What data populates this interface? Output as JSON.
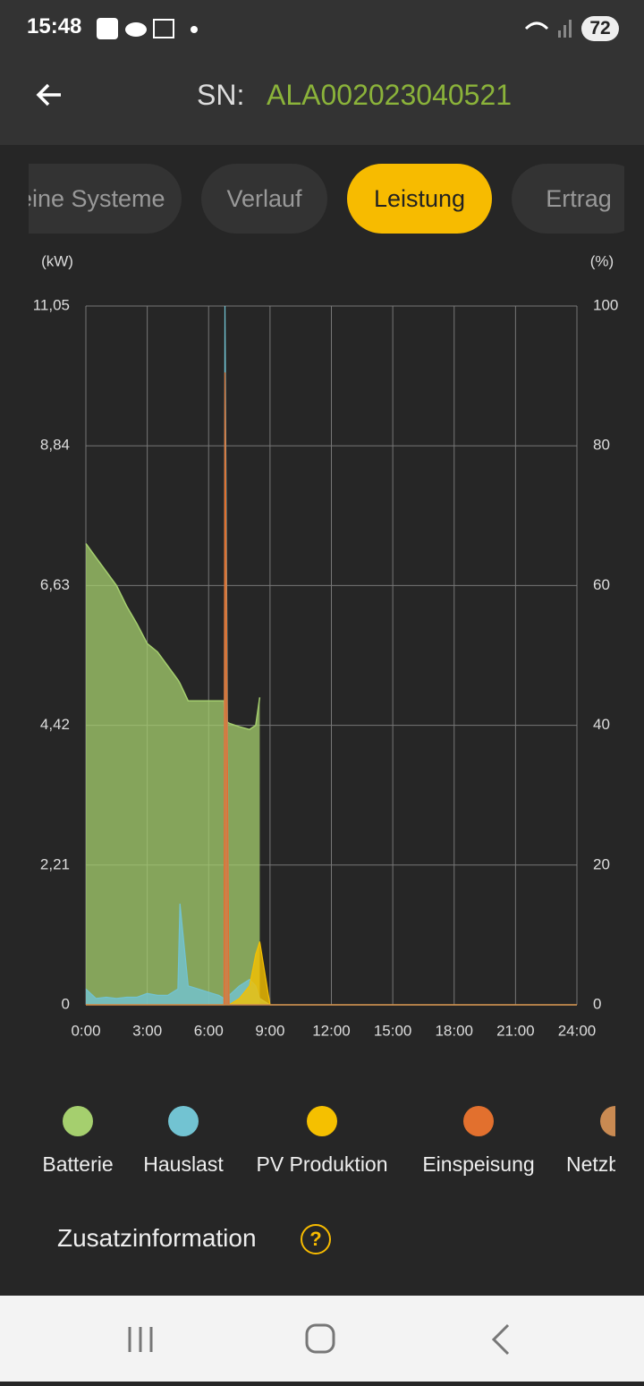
{
  "status_bar": {
    "time": "15:48",
    "battery": "72"
  },
  "header": {
    "label": "SN:",
    "serial": "ALA002023040521"
  },
  "tabs": [
    "Meine Systeme",
    "Verlauf",
    "Leistung",
    "Ertrag"
  ],
  "active_tab": 2,
  "chart_data": {
    "type": "area",
    "ylabel": "(kW)",
    "y2label": "(%)",
    "x": [
      0,
      0.5,
      1,
      1.5,
      2,
      2.5,
      3,
      3.5,
      4,
      4.5,
      4.6,
      5,
      5.5,
      6,
      6.5,
      6.75,
      6.8,
      7,
      7.5,
      8,
      8.3,
      8.5,
      9,
      12,
      15,
      18,
      21,
      24
    ],
    "xlim": [
      0,
      24
    ],
    "xticks": [
      {
        "value": 0,
        "label": "0:00"
      },
      {
        "value": 3,
        "label": "3:00"
      },
      {
        "value": 6,
        "label": "6:00"
      },
      {
        "value": 9,
        "label": "9:00"
      },
      {
        "value": 12,
        "label": "12:00"
      },
      {
        "value": 15,
        "label": "15:00"
      },
      {
        "value": 18,
        "label": "18:00"
      },
      {
        "value": 21,
        "label": "21:00"
      },
      {
        "value": 24,
        "label": "24:00"
      }
    ],
    "ylim": [
      0,
      11.05
    ],
    "yticks": [
      0,
      {
        "value": 2.21,
        "label": "2,21"
      },
      {
        "value": 4.42,
        "label": "4,42"
      },
      {
        "value": 6.63,
        "label": "6,63"
      },
      {
        "value": 8.84,
        "label": "8,84"
      },
      {
        "value": 11.05,
        "label": "11,05"
      }
    ],
    "y2lim": [
      0,
      100
    ],
    "y2ticks": [
      0,
      20,
      40,
      60,
      80,
      100
    ],
    "grid": true,
    "series": [
      {
        "name": "Batterie",
        "color": "#a5cf6e",
        "axis": "y2",
        "values": [
          66,
          64,
          62,
          60,
          57,
          54.5,
          51.7,
          50.5,
          48.5,
          46.5,
          46,
          43.5,
          43.5,
          43.5,
          43.5,
          43.5,
          40.7,
          40.3,
          39.8,
          39.4,
          40,
          44,
          null,
          null,
          null,
          null,
          null,
          null
        ]
      },
      {
        "name": "Hauslast",
        "color": "#72c3d2",
        "values": [
          0.25,
          0.1,
          0.12,
          0.1,
          0.12,
          0.12,
          0.18,
          0.15,
          0.15,
          0.25,
          1.6,
          0.3,
          0.25,
          0.2,
          0.15,
          0.1,
          11.05,
          0.15,
          0.3,
          0.4,
          0.3,
          0.1,
          0,
          0,
          0,
          0,
          0,
          0
        ]
      },
      {
        "name": "PV Produktion",
        "color": "#f5c000",
        "values": [
          0,
          0,
          0,
          0,
          0,
          0,
          0,
          0,
          0,
          0,
          0,
          0,
          0,
          0,
          0,
          0,
          0,
          0,
          0.1,
          0.3,
          0.8,
          1.0,
          0,
          0,
          0,
          0,
          0,
          0
        ]
      },
      {
        "name": "Einspeisung",
        "color": "#e2702e",
        "values": [
          0,
          0,
          0,
          0,
          0,
          0,
          0,
          0,
          0,
          0,
          0,
          0,
          0,
          0,
          0,
          0,
          10,
          0,
          0,
          0,
          0,
          0,
          0,
          0,
          0,
          0,
          0,
          0
        ]
      },
      {
        "name": "Netzbezug",
        "color": "#c98a52",
        "values": [
          0,
          0,
          0,
          0,
          0,
          0,
          0,
          0,
          0,
          0,
          0,
          0,
          0,
          0,
          0,
          0,
          0,
          0,
          0,
          0,
          0,
          0,
          0,
          0,
          0,
          0,
          0,
          0
        ]
      }
    ]
  },
  "info": "Zusatzinformation"
}
